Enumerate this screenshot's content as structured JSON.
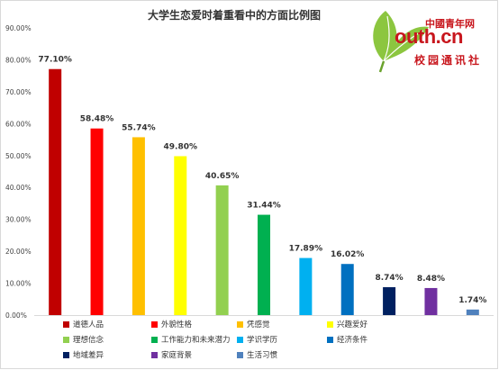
{
  "chart_data": {
    "type": "bar",
    "title": "大学生恋爱时着重看中的方面比例图",
    "xlabel": "",
    "ylabel": "",
    "ylim": [
      0,
      90
    ],
    "yticks": [
      "0.00%",
      "10.00%",
      "20.00%",
      "30.00%",
      "40.00%",
      "50.00%",
      "60.00%",
      "70.00%",
      "80.00%",
      "90.00%"
    ],
    "grid": false,
    "legend_position": "bottom",
    "categories": [
      "道德人品",
      "外貌性格",
      "凭感觉",
      "兴趣爱好",
      "理想信念",
      "工作能力和未来潜力",
      "学识学历",
      "经济条件",
      "地域差异",
      "家庭背景",
      "生活习惯"
    ],
    "values": [
      77.1,
      58.48,
      55.74,
      49.8,
      40.65,
      31.44,
      17.89,
      16.02,
      8.74,
      8.48,
      1.74
    ],
    "data_labels": [
      "77.10%",
      "58.48%",
      "55.74%",
      "49.80%",
      "40.65%",
      "31.44%",
      "17.89%",
      "16.02%",
      "8.74%",
      "8.48%",
      "1.74%"
    ],
    "colors": [
      "#c00000",
      "#ff0000",
      "#ffc000",
      "#ffff00",
      "#92d050",
      "#00b050",
      "#00b0f0",
      "#0070c0",
      "#002060",
      "#7030a0",
      "#4f81bd"
    ]
  },
  "logo": {
    "brand_cn": "中國青年网",
    "domain": "outh.cn",
    "subtitle": "校园通讯社"
  }
}
